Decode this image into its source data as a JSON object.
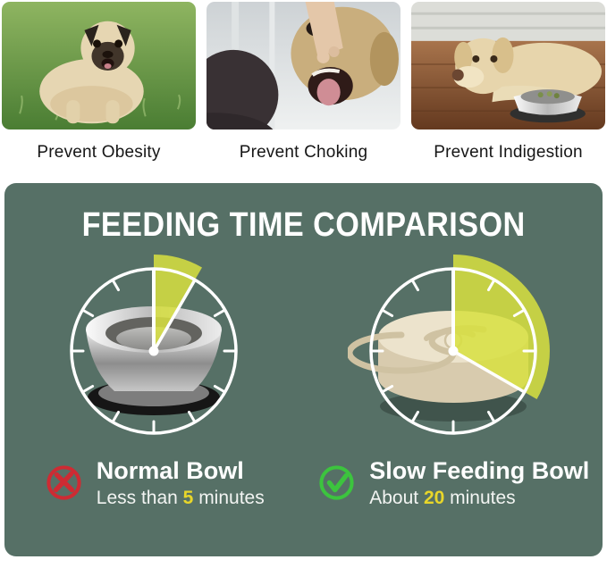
{
  "benefits": [
    {
      "label": "Prevent Obesity",
      "photo": "obese-pug-on-grass"
    },
    {
      "label": "Prevent Choking",
      "photo": "checking-dog-open-mouth"
    },
    {
      "label": "Prevent Indigestion",
      "photo": "tired-dog-lying-with-bowl"
    }
  ],
  "comparison": {
    "title": "FEEDING TIME COMPARISON",
    "panel_color": "#567066",
    "wedge_color": "#d8e13f",
    "highlight_color": "#e8d62a",
    "clock_minutes_total": 60,
    "bowls": [
      {
        "name": "Normal Bowl",
        "minutes": 5,
        "time_prefix": "Less than ",
        "time_value": "5",
        "time_suffix": " minutes",
        "icon": "cross-icon",
        "icon_color": "#ce2b33"
      },
      {
        "name": "Slow Feeding Bowl",
        "minutes": 20,
        "time_prefix": "About ",
        "time_value": "20",
        "time_suffix": " minutes",
        "icon": "check-icon",
        "icon_color": "#3cc43e"
      }
    ]
  }
}
